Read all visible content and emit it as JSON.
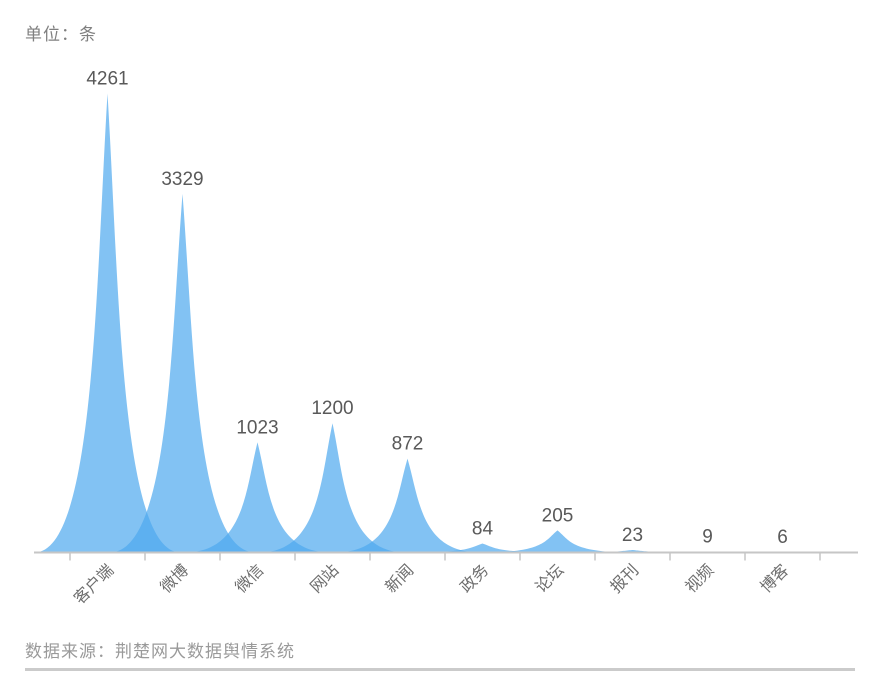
{
  "chart_data": {
    "type": "area",
    "variant": "peak-spike",
    "title": "",
    "unit_label": "单位：条",
    "source_label": "数据来源：荆楚网大数据舆情系统",
    "categories": [
      "客户端",
      "微博",
      "微信",
      "网站",
      "新闻",
      "政务",
      "论坛",
      "报刊",
      "视频",
      "博客"
    ],
    "values": [
      4261,
      3329,
      1023,
      1200,
      872,
      84,
      205,
      23,
      9,
      6
    ],
    "xlabel": "",
    "ylabel": "",
    "ylim": [
      0,
      4261
    ],
    "grid": false,
    "legend": null,
    "colors": {
      "peak_fill": "#4da8ee",
      "peak_opacity": 0.7,
      "axis_line": "#c6c6c6",
      "tick": "#c6c6c6",
      "value_label": "#595959",
      "category_label": "#6e6e6e",
      "unit_label": "#808080",
      "source_label": "#9a9a9a",
      "bottom_rule": "#cbcbcb"
    }
  }
}
